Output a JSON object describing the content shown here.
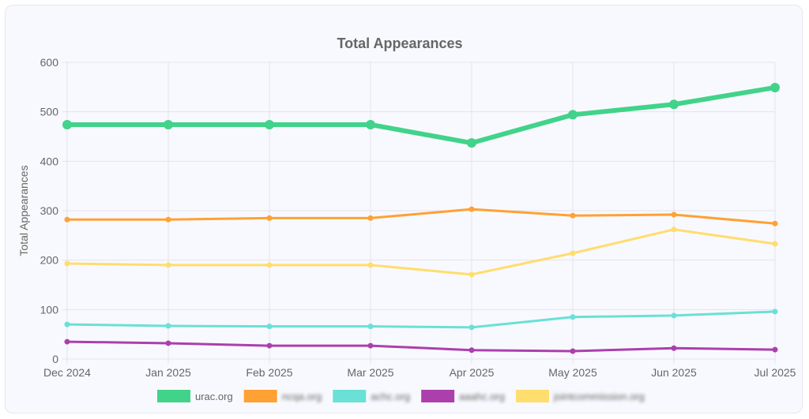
{
  "chart_data": {
    "type": "line",
    "title": "Total Appearances",
    "xlabel": "",
    "ylabel": "Total Appearances",
    "categories": [
      "Dec 2024",
      "Jan 2025",
      "Feb 2025",
      "Mar 2025",
      "Apr 2025",
      "May 2025",
      "Jun 2025",
      "Jul 2025"
    ],
    "ylim": [
      0,
      600
    ],
    "yticks": [
      0,
      100,
      200,
      300,
      400,
      500,
      600
    ],
    "grid": true,
    "legend_position": "bottom",
    "series": [
      {
        "name": "urac.org",
        "color": "#41d38a",
        "values": [
          474,
          474,
          474,
          474,
          437,
          494,
          515,
          549
        ],
        "emphasis": true,
        "blurred": false
      },
      {
        "name": "ncqa.org",
        "color": "#ffa133",
        "values": [
          282,
          282,
          285,
          285,
          303,
          290,
          292,
          274
        ],
        "blurred": true
      },
      {
        "name": "achc.org",
        "color": "#6ae0d6",
        "values": [
          70,
          67,
          66,
          66,
          64,
          85,
          88,
          96
        ],
        "blurred": true
      },
      {
        "name": "aaahc.org",
        "color": "#ac3fac",
        "values": [
          35,
          32,
          27,
          27,
          18,
          16,
          22,
          19
        ],
        "blurred": true
      },
      {
        "name": "jointcommission.org",
        "color": "#ffdd6e",
        "values": [
          193,
          190,
          190,
          190,
          171,
          214,
          262,
          233
        ],
        "blurred": true
      }
    ]
  }
}
